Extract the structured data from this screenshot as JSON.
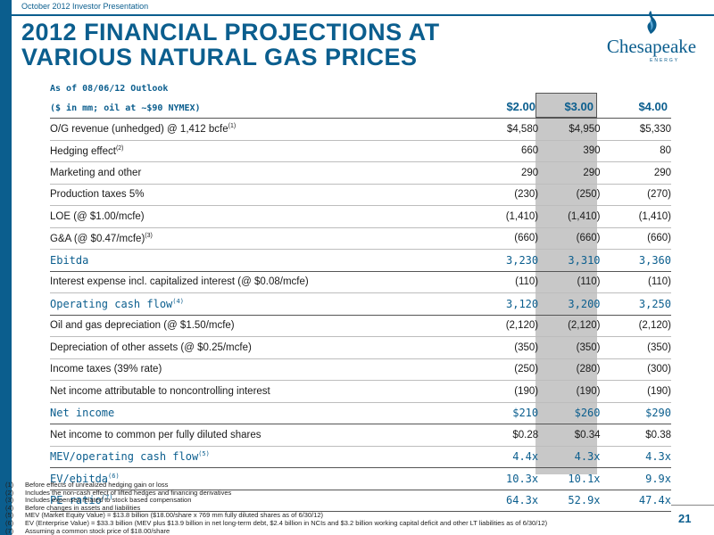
{
  "header_note": "October 2012 Investor Presentation",
  "title_line1": "2012 FINANCIAL PROJECTIONS AT",
  "title_line2": "VARIOUS NATURAL GAS PRICES",
  "logo": {
    "word": "Chesapeake",
    "sub": "ENERGY"
  },
  "outlook_line1": "As of 08/06/12 Outlook",
  "outlook_line2": "($ in mm; oil at ~$90 NYMEX)",
  "columns": [
    "$2.00",
    "$3.00",
    "$4.00"
  ],
  "rows": [
    {
      "label": "O/G revenue (unhedged) @ 1,412 bcfe",
      "sup": "(1)",
      "values": [
        "$4,580",
        "$4,950",
        "$5,330"
      ]
    },
    {
      "label": "Hedging effect",
      "sup": "(2)",
      "values": [
        "660",
        "390",
        "80"
      ]
    },
    {
      "label": "Marketing and other",
      "sup": "",
      "values": [
        "290",
        "290",
        "290"
      ]
    },
    {
      "label": "Production taxes 5%",
      "sup": "",
      "values": [
        "(230)",
        "(250)",
        "(270)"
      ]
    },
    {
      "label": "LOE (@ $1.00/mcfe)",
      "sup": "",
      "values": [
        "(1,410)",
        "(1,410)",
        "(1,410)"
      ]
    },
    {
      "label": "G&A (@ $0.47/mcfe)",
      "sup": "(3)",
      "values": [
        "(660)",
        "(660)",
        "(660)"
      ]
    },
    {
      "label": "Ebitda",
      "sup": "",
      "values": [
        "3,230",
        "3,310",
        "3,360"
      ],
      "highlight": true
    },
    {
      "label": "Interest expense incl. capitalized interest (@ $0.08/mcfe)",
      "sup": "",
      "values": [
        "(110)",
        "(110)",
        "(110)"
      ]
    },
    {
      "label": "Operating cash flow",
      "sup": "(4)",
      "values": [
        "3,120",
        "3,200",
        "3,250"
      ],
      "highlight": true
    },
    {
      "label": "Oil and gas depreciation (@ $1.50/mcfe)",
      "sup": "",
      "values": [
        "(2,120)",
        "(2,120)",
        "(2,120)"
      ]
    },
    {
      "label": "Depreciation of other assets (@ $0.25/mcfe)",
      "sup": "",
      "values": [
        "(350)",
        "(350)",
        "(350)"
      ]
    },
    {
      "label": "Income taxes (39% rate)",
      "sup": "",
      "values": [
        "(250)",
        "(280)",
        "(300)"
      ]
    },
    {
      "label": "Net income attributable to noncontrolling interest",
      "sup": "",
      "values": [
        "(190)",
        "(190)",
        "(190)"
      ]
    },
    {
      "label": "Net income",
      "sup": "",
      "values": [
        "$210",
        "$260",
        "$290"
      ],
      "highlight": true
    },
    {
      "label": "Net income to common per fully diluted shares",
      "sup": "",
      "values": [
        "$0.28",
        "$0.34",
        "$0.38"
      ]
    },
    {
      "label": "MEV/operating cash flow",
      "sup": "(5)",
      "values": [
        "4.4x",
        "4.3x",
        "4.3x"
      ],
      "highlight": true
    },
    {
      "label": "EV/ebitda",
      "sup": "(6)",
      "values": [
        "10.3x",
        "10.1x",
        "9.9x"
      ],
      "highlight": true
    },
    {
      "label": "PE ratio",
      "sup": "(7)",
      "values": [
        "64.3x",
        "52.9x",
        "47.4x"
      ],
      "highlight": true
    }
  ],
  "footnotes": [
    {
      "num": "(1)",
      "text": "Before effects of unrealized hedging gain or loss"
    },
    {
      "num": "(2)",
      "text": "Includes the non-cash effect of lifted hedges and financing derivatives"
    },
    {
      "num": "(3)",
      "text": "Includes expenses related to stock based compensation"
    },
    {
      "num": "(4)",
      "text": "Before changes in assets and liabilities"
    },
    {
      "num": "(5)",
      "text": "MEV (Market Equity Value) = $13.8 billion ($18.00/share x 769 mm fully diluted shares as of 6/30/12)"
    },
    {
      "num": "(6)",
      "text": "EV (Enterprise Value) = $33.3 billion (MEV plus $13.9 billion in net long-term debt, $2.4 billion in NCIs and $3.2 billion working capital deficit and other LT liabilities as of 6/30/12)"
    },
    {
      "num": "(7)",
      "text": "Assuming a common stock price of $18.00/share"
    }
  ],
  "page_number": "21"
}
